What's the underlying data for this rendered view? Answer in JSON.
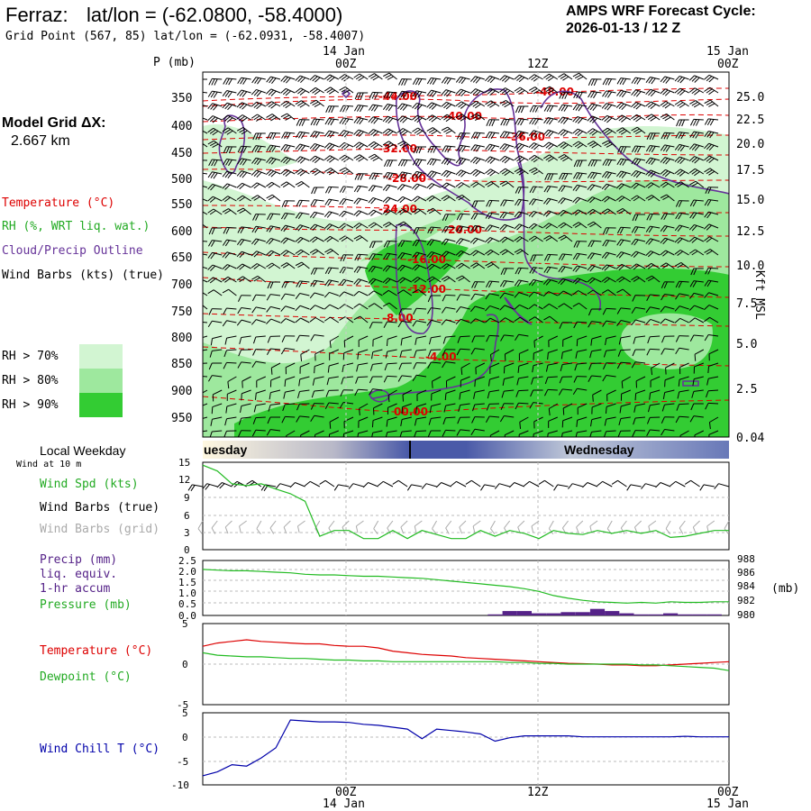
{
  "header": {
    "station": "Ferraz:",
    "latlon_label": "lat/lon = (-62.0800, -58.4000)",
    "grid_point": "Grid Point (567, 85) lat/lon = (-62.0931, -58.4007)",
    "cycle_title": "AMPS WRF Forecast Cycle:",
    "cycle_time": "2026-01-13 / 12  Z"
  },
  "model": {
    "label": "Model Grid ΔX:",
    "value": "2.667 km"
  },
  "time_axis": {
    "top_dates": [
      "14 Jan",
      "15 Jan"
    ],
    "ticks": [
      "00Z",
      "12Z",
      "00Z"
    ],
    "bottom_dates": [
      "14 Jan",
      "15 Jan"
    ]
  },
  "legend_upper": {
    "temperature": "Temperature (°C)",
    "rh": "RH (%, WRT liq. wat.)",
    "cloud": "Cloud/Precip Outline",
    "wind": "Wind Barbs (kts) (true)",
    "rh70": "RH > 70%",
    "rh80": "RH > 80%",
    "rh90": "RH > 90%"
  },
  "colors": {
    "rh70": "#d2f5d2",
    "rh80": "#9ee89e",
    "rh90": "#33cc33",
    "temperature": "#dd0000",
    "cloud": "#663399",
    "pressure_line": "#22bb22",
    "precip": "#552288",
    "windchill": "#0000aa",
    "dewpoint": "#22bb22"
  },
  "weekday_bar": {
    "label": "Local Weekday",
    "days": [
      "uesday",
      "Wednesday"
    ]
  },
  "wind_panel": {
    "sub": "Wind at 10 m",
    "spd": "Wind Spd (kts)",
    "barbs_true": "Wind Barbs (true)",
    "barbs_grid": "Wind Barbs (grid)",
    "yticks": [
      "15",
      "12",
      "9",
      "6",
      "3",
      "0"
    ]
  },
  "precip_panel": {
    "precip": "Precip (mm)",
    "liq": "liq. equiv.",
    "accum": "1-hr accum",
    "pressure": "Pressure (mb)",
    "unit_right": "(mb)",
    "yticks_left": [
      "2.5",
      "2.0",
      "1.5",
      "1.0",
      "0.5",
      "0.0"
    ],
    "yticks_right": [
      "988",
      "986",
      "984",
      "982",
      "980"
    ]
  },
  "temp_panel": {
    "temperature": "Temperature (°C)",
    "dewpoint": "Dewpoint (°C)",
    "yticks": [
      "5",
      "0",
      "-5"
    ]
  },
  "chill_panel": {
    "label": "Wind Chill T (°C)",
    "yticks": [
      "5",
      "0",
      "-5",
      "-10"
    ]
  },
  "chart_data": {
    "type": "line",
    "cross_section": {
      "y_label": "P (mb)",
      "right_label": "Kft MSL",
      "pressure_ticks": [
        "350",
        "400",
        "450",
        "500",
        "550",
        "600",
        "650",
        "700",
        "750",
        "800",
        "850",
        "900",
        "950"
      ],
      "height_ticks": [
        "25.0",
        "22.5",
        "20.0",
        "17.5",
        "15.0",
        "12.5",
        "10.0",
        "7.5",
        "5.0",
        "2.5",
        "0.04"
      ],
      "isotherm_labels": [
        "-44.00",
        "-40.00",
        "-48.00",
        "-36.00",
        "-32.00",
        "-28.00",
        "-24.00",
        "-20.00",
        "-16.00",
        "-12.00",
        "-8.00",
        "-4.00",
        "00.00"
      ]
    },
    "forecast_hours": [
      0,
      1,
      2,
      3,
      4,
      5,
      6,
      7,
      8,
      9,
      10,
      11,
      12,
      13,
      14,
      15,
      16,
      17,
      18,
      19,
      20,
      21,
      22,
      23,
      24,
      25,
      26,
      27,
      28,
      29,
      30,
      31,
      32,
      33,
      34,
      35,
      36
    ],
    "series": [
      {
        "panel": "wind",
        "units": "kts",
        "values": [
          14.5,
          13.5,
          11.3,
          11,
          11.3,
          10.4,
          9.6,
          8.3,
          2.3,
          3.3,
          3.3,
          1.9,
          1.9,
          3.3,
          1.9,
          3.3,
          2.6,
          1.9,
          1.9,
          3.3,
          2.3,
          3.3,
          2.8,
          1.9,
          3.3,
          2.8,
          2.6,
          3.3,
          2.8,
          3.3,
          2.8,
          3.3,
          2.1,
          2.3,
          2.8,
          3.3,
          3.3
        ]
      },
      {
        "panel": "pressure",
        "units": "mb",
        "values": [
          986.7,
          986.6,
          986.5,
          986.5,
          986.4,
          986.3,
          986.2,
          986,
          985.9,
          985.9,
          985.8,
          985.7,
          985.7,
          985.6,
          985.5,
          985.4,
          985.2,
          985,
          984.8,
          984.6,
          984.4,
          984.2,
          983.9,
          983.5,
          982.9,
          982.5,
          982.2,
          982,
          981.9,
          981.8,
          981.9,
          981.8,
          982,
          981.9,
          981.9,
          982,
          982
        ]
      },
      {
        "panel": "precip",
        "units": "mm",
        "values": [
          0,
          0,
          0,
          0,
          0,
          0,
          0,
          0,
          0,
          0,
          0,
          0,
          0,
          0,
          0,
          0,
          0,
          0,
          0,
          0,
          0.05,
          0.2,
          0.2,
          0.1,
          0.1,
          0.15,
          0.15,
          0.3,
          0.2,
          0.1,
          0.05,
          0.05,
          0.1,
          0.05,
          0.05,
          0.05,
          0
        ]
      },
      {
        "panel": "temperature",
        "units": "°C",
        "values": [
          2.2,
          2.6,
          2.8,
          3,
          2.8,
          2.7,
          2.6,
          2.5,
          2.5,
          2.3,
          2.2,
          2.2,
          2,
          1.6,
          1.4,
          1.2,
          1.1,
          1,
          0.8,
          0.7,
          0.6,
          0.5,
          0.4,
          0.3,
          0.2,
          0.1,
          0.05,
          0,
          -0.1,
          -0.1,
          -0.2,
          -0.2,
          -0.1,
          0,
          0.1,
          0.2,
          0.3
        ]
      },
      {
        "panel": "dewpoint",
        "units": "°C",
        "values": [
          1.4,
          1.1,
          1,
          0.9,
          0.9,
          0.8,
          0.7,
          0.7,
          0.6,
          0.5,
          0.5,
          0.4,
          0.4,
          0.3,
          0.3,
          0.3,
          0.3,
          0.3,
          0.3,
          0.3,
          0.3,
          0.2,
          0.2,
          0.1,
          0.1,
          0,
          0,
          0,
          0,
          0,
          -0.1,
          -0.1,
          -0.2,
          -0.3,
          -0.4,
          -0.5,
          -0.8
        ]
      },
      {
        "panel": "windchill",
        "units": "°C",
        "values": [
          -8.1,
          -7.3,
          -5.8,
          -6.1,
          -4.4,
          -2.3,
          3.5,
          3.3,
          3.1,
          3.1,
          3,
          2.6,
          2.4,
          2,
          1.6,
          -0.4,
          1.6,
          1.3,
          1,
          0.6,
          -0.9,
          -0.2,
          0.2,
          0.2,
          0.2,
          0.2,
          0,
          0,
          0,
          0,
          0,
          0,
          0,
          0.1,
          0,
          0,
          0
        ]
      }
    ]
  }
}
